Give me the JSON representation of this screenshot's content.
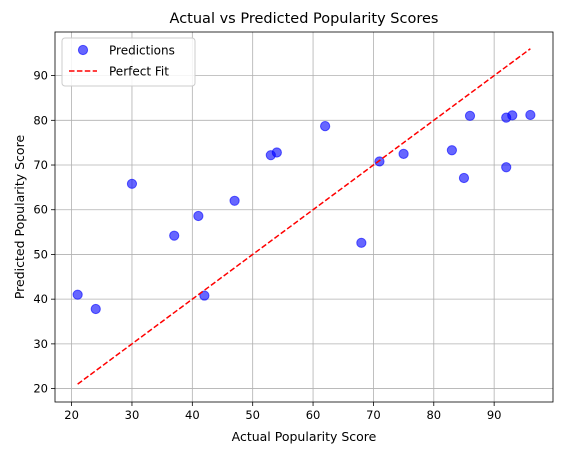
{
  "chart_data": {
    "type": "scatter",
    "title": "Actual vs Predicted Popularity Scores",
    "xlabel": "Actual Popularity Score",
    "ylabel": "Predicted Popularity Score",
    "xlim": [
      17.25,
      99.75
    ],
    "ylim": [
      17.0,
      99.75
    ],
    "xticks": [
      20,
      30,
      40,
      50,
      60,
      70,
      80,
      90
    ],
    "yticks": [
      20,
      30,
      40,
      50,
      60,
      70,
      80,
      90
    ],
    "grid": true,
    "legend_position": "top-left",
    "series": [
      {
        "name": "Predictions",
        "kind": "scatter",
        "color": "#0000ff",
        "alpha": 0.6,
        "points": [
          [
            21,
            41.0
          ],
          [
            24,
            37.8
          ],
          [
            30,
            65.8
          ],
          [
            37,
            54.2
          ],
          [
            41,
            58.6
          ],
          [
            42,
            40.8
          ],
          [
            47,
            62.0
          ],
          [
            53,
            72.2
          ],
          [
            54,
            72.8
          ],
          [
            62,
            78.7
          ],
          [
            68,
            52.6
          ],
          [
            71,
            70.8
          ],
          [
            75,
            72.5
          ],
          [
            83,
            73.3
          ],
          [
            85,
            67.1
          ],
          [
            86,
            81.0
          ],
          [
            92,
            69.5
          ],
          [
            92,
            80.6
          ],
          [
            93,
            81.1
          ],
          [
            96,
            81.2
          ]
        ]
      },
      {
        "name": "Perfect Fit",
        "kind": "line",
        "color": "#ff0000",
        "dash": "dashed",
        "points": [
          [
            21,
            21
          ],
          [
            96,
            96
          ]
        ]
      }
    ]
  }
}
